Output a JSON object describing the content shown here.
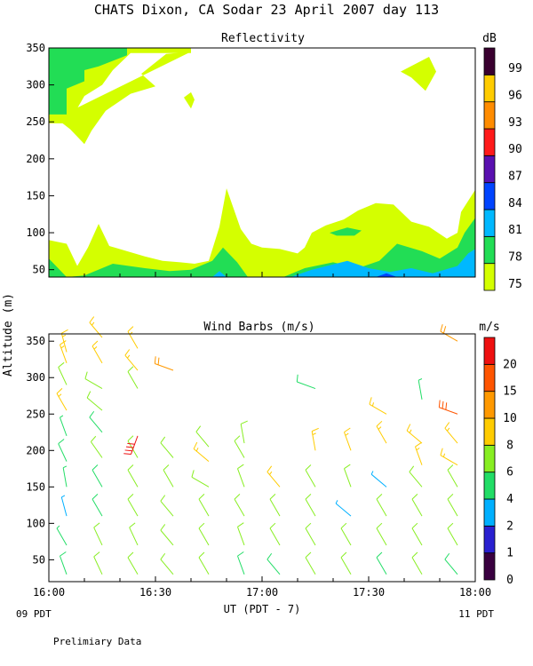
{
  "page": {
    "title": "CHATS Dixon, CA  Sodar  23 April 2007  day 113",
    "ylabel": "Altitude (m)",
    "xlabel": "UT (PDT - 7)",
    "start_local": "09 PDT",
    "end_local": "11 PDT",
    "note": "Prelimiary Data"
  },
  "colors": {
    "reflectivity_scale": [
      "#d4ff00",
      "#22dd55",
      "#00b8ff",
      "#0044ff",
      "#5a10b0",
      "#ff1a1a",
      "#ff8c00",
      "#ffcc00",
      "#3a0030"
    ],
    "wind_scale": [
      "#3a0040",
      "#2a20d0",
      "#00b0ff",
      "#22dd66",
      "#88ee22",
      "#ffcc00",
      "#ff9900",
      "#ff5500",
      "#ee1010"
    ]
  },
  "chart_data": [
    {
      "type": "heatmap",
      "title": "Reflectivity",
      "units": "dB",
      "x_ticks": [
        "16:00",
        "16:30",
        "17:00",
        "17:30",
        "18:00"
      ],
      "x_range": [
        "16:00",
        "18:00"
      ],
      "y_ticks": [
        "50",
        "100",
        "150",
        "200",
        "250",
        "300",
        "350"
      ],
      "y_range": [
        40,
        350
      ],
      "colorbar": {
        "levels": [
          "75",
          "78",
          "81",
          "84",
          "87",
          "90",
          "93",
          "96",
          "99"
        ]
      },
      "regions": [
        {
          "level": 75,
          "points": [
            [
              "16:00",
              350
            ],
            [
              "16:40",
              350
            ],
            [
              "16:40",
              343
            ],
            [
              "16:23",
              343
            ],
            [
              "16:18",
              320
            ],
            [
              "16:15",
              300
            ],
            [
              "16:10",
              285
            ],
            [
              "16:07",
              260
            ],
            [
              "16:04",
              248
            ],
            [
              "16:00",
              248
            ]
          ]
        },
        {
          "level": 75,
          "points": [
            [
              "16:40",
              345
            ],
            [
              "16:33",
              342
            ],
            [
              "16:26",
              315
            ],
            [
              "16:30",
              298
            ],
            [
              "16:23",
              288
            ],
            [
              "16:16",
              265
            ],
            [
              "16:12",
              238
            ],
            [
              "16:10",
              220
            ],
            [
              "16:06",
              240
            ],
            [
              "16:02",
              255
            ]
          ]
        },
        {
          "level": 78,
          "points": [
            [
              "16:00",
              350
            ],
            [
              "16:22",
              350
            ],
            [
              "16:22",
              340
            ],
            [
              "16:14",
              325
            ],
            [
              "16:10",
              320
            ],
            [
              "16:10",
              305
            ],
            [
              "16:05",
              295
            ],
            [
              "16:05",
              260
            ],
            [
              "16:00",
              260
            ]
          ]
        },
        {
          "level": 75,
          "points": [
            [
              "17:39",
              318
            ],
            [
              "17:47",
              338
            ],
            [
              "17:49",
              318
            ],
            [
              "17:46",
              292
            ],
            [
              "17:42",
              310
            ]
          ]
        },
        {
          "level": 75,
          "points": [
            [
              "16:38",
              283
            ],
            [
              "16:40",
              290
            ],
            [
              "16:41",
              280
            ],
            [
              "16:40",
              268
            ]
          ]
        },
        {
          "level": 75,
          "points": [
            [
              "16:00",
              40
            ],
            [
              "16:00",
              90
            ],
            [
              "16:05",
              85
            ],
            [
              "16:08",
              55
            ],
            [
              "16:11",
              80
            ],
            [
              "16:14",
              112
            ],
            [
              "16:17",
              82
            ],
            [
              "16:22",
              75
            ],
            [
              "16:27",
              68
            ],
            [
              "16:32",
              62
            ],
            [
              "16:37",
              60
            ],
            [
              "16:41",
              58
            ],
            [
              "16:45",
              62
            ],
            [
              "16:48",
              108
            ],
            [
              "16:50",
              160
            ],
            [
              "16:54",
              105
            ],
            [
              "16:57",
              85
            ],
            [
              "17:00",
              80
            ],
            [
              "17:05",
              78
            ],
            [
              "17:10",
              72
            ],
            [
              "17:12",
              80
            ],
            [
              "17:14",
              100
            ],
            [
              "17:18",
              110
            ],
            [
              "17:23",
              118
            ],
            [
              "17:27",
              130
            ],
            [
              "17:32",
              140
            ],
            [
              "17:37",
              138
            ],
            [
              "17:42",
              115
            ],
            [
              "17:47",
              108
            ],
            [
              "17:52",
              92
            ],
            [
              "17:55",
              100
            ],
            [
              "17:56",
              128
            ],
            [
              "18:00",
              158
            ],
            [
              "18:00",
              40
            ]
          ]
        },
        {
          "level": 78,
          "points": [
            [
              "16:00",
              40
            ],
            [
              "16:00",
              65
            ],
            [
              "16:02",
              55
            ],
            [
              "16:05",
              40
            ],
            [
              "16:10",
              42
            ],
            [
              "16:18",
              58
            ],
            [
              "16:27",
              52
            ],
            [
              "16:34",
              48
            ],
            [
              "16:40",
              50
            ],
            [
              "16:46",
              62
            ],
            [
              "16:49",
              80
            ],
            [
              "16:53",
              60
            ],
            [
              "16:56",
              40
            ],
            [
              "17:06",
              40
            ],
            [
              "17:12",
              52
            ],
            [
              "17:20",
              60
            ],
            [
              "17:27",
              52
            ],
            [
              "17:33",
              62
            ],
            [
              "17:38",
              85
            ],
            [
              "17:45",
              75
            ],
            [
              "17:50",
              65
            ],
            [
              "17:55",
              80
            ],
            [
              "17:57",
              100
            ],
            [
              "18:00",
              120
            ],
            [
              "18:00",
              40
            ]
          ]
        },
        {
          "level": 78,
          "points": [
            [
              "17:19",
              100
            ],
            [
              "17:24",
              107
            ],
            [
              "17:28",
              103
            ],
            [
              "17:26",
              96
            ],
            [
              "17:21",
              96
            ]
          ]
        },
        {
          "level": 81,
          "points": [
            [
              "16:46",
              40
            ],
            [
              "16:48",
              48
            ],
            [
              "16:50",
              40
            ]
          ]
        },
        {
          "level": 81,
          "points": [
            [
              "17:08",
              40
            ],
            [
              "17:14",
              50
            ],
            [
              "17:24",
              62
            ],
            [
              "17:30",
              52
            ],
            [
              "17:36",
              47
            ],
            [
              "17:42",
              52
            ],
            [
              "17:48",
              45
            ],
            [
              "17:55",
              55
            ],
            [
              "17:58",
              72
            ],
            [
              "18:00",
              78
            ],
            [
              "18:00",
              40
            ]
          ]
        },
        {
          "level": 84,
          "points": [
            [
              "17:32",
              40
            ],
            [
              "17:35",
              45
            ],
            [
              "17:38",
              40
            ]
          ]
        }
      ]
    },
    {
      "type": "scatter",
      "title": "Wind Barbs (m/s)",
      "units": "m/s",
      "x_ticks": [
        "16:00",
        "16:30",
        "17:00",
        "17:30",
        "18:00"
      ],
      "x_range": [
        "16:00",
        "18:00"
      ],
      "y_ticks": [
        "50",
        "100",
        "150",
        "200",
        "250",
        "300",
        "350"
      ],
      "y_range": [
        20,
        360
      ],
      "colorbar": {
        "levels": [
          "0",
          "1",
          "2",
          "4",
          "6",
          "8",
          "10",
          "15",
          "20"
        ]
      },
      "barb_times": [
        "16:05",
        "16:15",
        "16:25",
        "16:35",
        "16:45",
        "16:55",
        "17:05",
        "17:15",
        "17:25",
        "17:35",
        "17:45",
        "17:55"
      ],
      "series": [
        {
          "time": "16:05",
          "alt": [
            30,
            70,
            110,
            150,
            185,
            220,
            255,
            290,
            320,
            335
          ],
          "speed": [
            5,
            4,
            3,
            4,
            5,
            4,
            8,
            6,
            8,
            8
          ],
          "direction": [
            340,
            330,
            345,
            350,
            335,
            340,
            330,
            335,
            340,
            345
          ]
        },
        {
          "time": "16:15",
          "alt": [
            30,
            70,
            110,
            150,
            190,
            225,
            255,
            285,
            320,
            355
          ],
          "speed": [
            6,
            6,
            5,
            5,
            6,
            5,
            7,
            7,
            8,
            9
          ],
          "direction": [
            335,
            335,
            330,
            330,
            325,
            320,
            310,
            300,
            330,
            320
          ]
        },
        {
          "time": "16:25",
          "alt": [
            30,
            70,
            110,
            150,
            190,
            220,
            285,
            310,
            340
          ],
          "speed": [
            6,
            6,
            6,
            6,
            6,
            20,
            6,
            8,
            8
          ],
          "direction": [
            330,
            335,
            330,
            330,
            330,
            200,
            330,
            320,
            330
          ]
        },
        {
          "time": "16:35",
          "alt": [
            30,
            70,
            110,
            150,
            190,
            310
          ],
          "speed": [
            6,
            6,
            6,
            7,
            7,
            10
          ],
          "direction": [
            320,
            320,
            320,
            330,
            320,
            290
          ]
        },
        {
          "time": "16:45",
          "alt": [
            30,
            70,
            110,
            150,
            185,
            205
          ],
          "speed": [
            7,
            7,
            7,
            6,
            8,
            6
          ],
          "direction": [
            330,
            330,
            330,
            300,
            310,
            320
          ]
        },
        {
          "time": "16:55",
          "alt": [
            30,
            70,
            110,
            150,
            190,
            210
          ],
          "speed": [
            5,
            6,
            6,
            7,
            6,
            6
          ],
          "direction": [
            340,
            340,
            330,
            340,
            330,
            350
          ]
        },
        {
          "time": "17:05",
          "alt": [
            30,
            70,
            110,
            150
          ],
          "speed": [
            5,
            6,
            6,
            8
          ],
          "direction": [
            320,
            330,
            330,
            320
          ]
        },
        {
          "time": "17:15",
          "alt": [
            30,
            70,
            110,
            150,
            200,
            285
          ],
          "speed": [
            6,
            6,
            6,
            6,
            8,
            5
          ],
          "direction": [
            330,
            330,
            330,
            330,
            350,
            290
          ]
        },
        {
          "time": "17:25",
          "alt": [
            30,
            70,
            110,
            150,
            200
          ],
          "speed": [
            6,
            6,
            3,
            6,
            8
          ],
          "direction": [
            330,
            330,
            310,
            340,
            340
          ]
        },
        {
          "time": "17:35",
          "alt": [
            30,
            70,
            110,
            150,
            210,
            250
          ],
          "speed": [
            5,
            6,
            6,
            3,
            8,
            9
          ],
          "direction": [
            330,
            330,
            330,
            310,
            330,
            300
          ]
        },
        {
          "time": "17:45",
          "alt": [
            30,
            70,
            110,
            150,
            180,
            210,
            270
          ],
          "speed": [
            6,
            6,
            6,
            6,
            8,
            8,
            4
          ],
          "direction": [
            330,
            330,
            330,
            320,
            340,
            310,
            350
          ]
        },
        {
          "time": "17:55",
          "alt": [
            30,
            70,
            110,
            150,
            180,
            210,
            250,
            350
          ],
          "speed": [
            5,
            6,
            6,
            7,
            8,
            8,
            15,
            12
          ],
          "direction": [
            320,
            330,
            330,
            330,
            300,
            320,
            290,
            300
          ]
        }
      ]
    }
  ]
}
